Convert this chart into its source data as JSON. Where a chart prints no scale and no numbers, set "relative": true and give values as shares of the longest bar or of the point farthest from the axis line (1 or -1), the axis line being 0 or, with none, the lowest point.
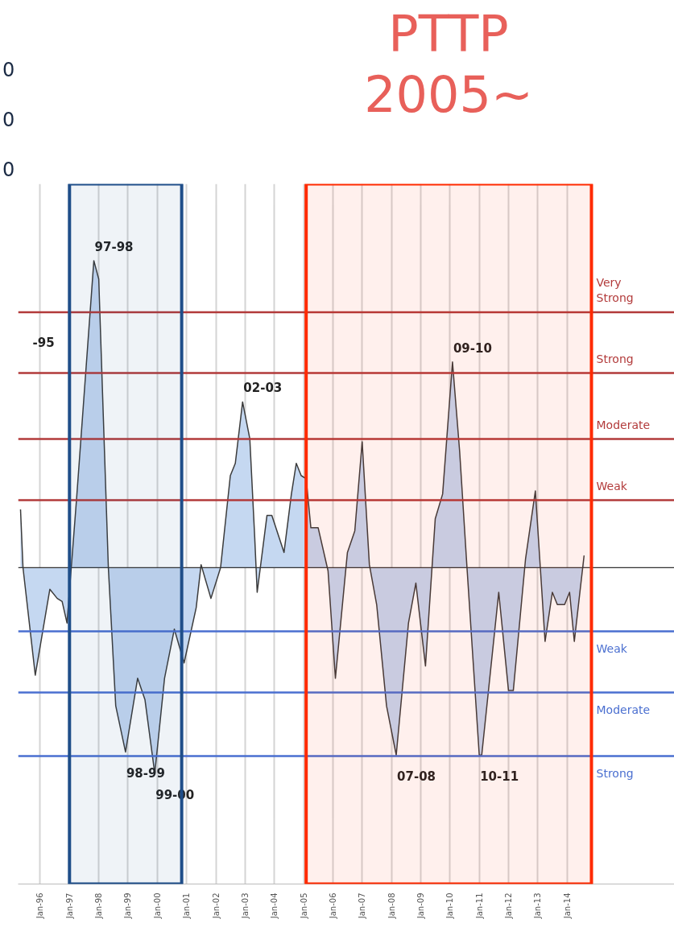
{
  "chart_data": {
    "type": "area",
    "relative": true,
    "x": [
      "1995-05",
      "1995-06",
      "1995-11",
      "1996-05",
      "1996-08",
      "1996-10",
      "1996-12",
      "1997-04",
      "1997-11",
      "1998-01",
      "1998-05",
      "1998-08",
      "1998-12",
      "1999-05",
      "1999-08",
      "1999-12",
      "2000-04",
      "2000-08",
      "2000-12",
      "2001-05",
      "2001-07",
      "2001-11",
      "2002-03",
      "2002-07",
      "2002-09",
      "2002-12",
      "2003-03",
      "2003-05",
      "2003-06",
      "2003-10",
      "2003-12",
      "2004-05",
      "2004-08",
      "2004-10",
      "2004-12",
      "2005-02",
      "2005-04",
      "2005-07",
      "2005-11",
      "2006-02",
      "2006-07",
      "2006-10",
      "2007-01",
      "2007-04",
      "2007-07",
      "2007-11",
      "2008-03",
      "2008-08",
      "2008-11",
      "2009-03",
      "2009-07",
      "2009-10",
      "2010-02",
      "2010-05",
      "2010-08",
      "2011-01",
      "2011-02",
      "2011-09",
      "2012-01",
      "2012-03",
      "2012-08",
      "2012-12",
      "2013-02",
      "2013-04",
      "2013-07",
      "2013-09",
      "2013-12",
      "2014-02",
      "2014-04",
      "2014-08"
    ],
    "series": [
      {
        "color": "#c5d8f1",
        "values": [
          0.19,
          0.0,
          -0.35,
          -0.07,
          -0.1,
          -0.11,
          -0.18,
          0.23,
          1.0,
          0.94,
          0.0,
          -0.45,
          -0.6,
          -0.36,
          -0.43,
          -0.67,
          -0.36,
          -0.2,
          -0.31,
          -0.13,
          0.01,
          -0.1,
          0.0,
          0.3,
          0.34,
          0.54,
          0.42,
          0.1,
          -0.08,
          0.17,
          0.17,
          0.05,
          0.24,
          0.34,
          0.3,
          0.29,
          0.13,
          0.13,
          -0.01,
          -0.36,
          0.05,
          0.12,
          0.41,
          0.01,
          -0.12,
          -0.45,
          -0.61,
          -0.18,
          -0.05,
          -0.32,
          0.16,
          0.24,
          0.67,
          0.38,
          0.0,
          -0.61,
          -0.61,
          -0.08,
          -0.4,
          -0.4,
          0.03,
          0.25,
          0.0,
          -0.24,
          -0.08,
          -0.12,
          -0.12,
          -0.08,
          -0.24,
          0.04
        ]
      }
    ],
    "xlim": [
      "1995-04",
      "2017-09"
    ],
    "xticks": [
      {
        "value": "1996-01",
        "label": "Jan-96"
      },
      {
        "value": "1997-01",
        "label": "Jan-97"
      },
      {
        "value": "1998-01",
        "label": "Jan-98"
      },
      {
        "value": "1999-01",
        "label": "Jan-99"
      },
      {
        "value": "2000-01",
        "label": "Jan-00"
      },
      {
        "value": "2001-01",
        "label": "Jan-01"
      },
      {
        "value": "2002-01",
        "label": "Jan-02"
      },
      {
        "value": "2003-01",
        "label": "Jan-03"
      },
      {
        "value": "2004-01",
        "label": "Jan-04"
      },
      {
        "value": "2005-01",
        "label": "Jan-05"
      },
      {
        "value": "2006-01",
        "label": "Jan-06"
      },
      {
        "value": "2007-01",
        "label": "Jan-07"
      },
      {
        "value": "2008-01",
        "label": "Jan-08"
      },
      {
        "value": "2009-01",
        "label": "Jan-09"
      },
      {
        "value": "2010-01",
        "label": "Jan-10"
      },
      {
        "value": "2011-01",
        "label": "Jan-11"
      },
      {
        "value": "2012-01",
        "label": "Jan-12"
      },
      {
        "value": "2013-01",
        "label": "Jan-13"
      },
      {
        "value": "2014-01",
        "label": "Jan-14"
      }
    ],
    "grid": "x",
    "tick_labels": "x",
    "ref_lines": [
      {
        "axis": "y",
        "value": 0.22,
        "label": "Weak",
        "color": "#b23a3a"
      },
      {
        "axis": "y",
        "value": 0.419,
        "label": "Moderate",
        "color": "#b23a3a"
      },
      {
        "axis": "y",
        "value": 0.634,
        "label": "Strong",
        "color": "#b23a3a"
      },
      {
        "axis": "y",
        "value": 0.832,
        "label": "Very Strong",
        "color": "#b23a3a"
      },
      {
        "axis": "y",
        "value": -0.207,
        "label": "Weak",
        "color": "#4a6fd0"
      },
      {
        "axis": "y",
        "value": -0.406,
        "label": "Moderate",
        "color": "#4a6fd0"
      },
      {
        "axis": "y",
        "value": -0.613,
        "label": "Strong",
        "color": "#4a6fd0"
      }
    ],
    "bands": [
      {
        "axis": "x",
        "from": "1997-01",
        "to": "2000-11",
        "label": null,
        "color": "#1f4e89"
      },
      {
        "axis": "x",
        "from": "2005-02",
        "to": "2014-11",
        "label": "PTTP 2005~",
        "color": "#ff2a00"
      }
    ],
    "annotations": [
      "0",
      "0",
      "0",
      "-95",
      {
        "text": "97-98",
        "x": "1997-11",
        "y": 1.0
      },
      {
        "text": "02-03",
        "x": "2002-12",
        "y": 0.54
      },
      {
        "text": "09-10",
        "x": "2010-02",
        "y": 0.67
      },
      {
        "text": "98-99",
        "x": "1998-12",
        "y": -0.6
      },
      {
        "text": "99-00",
        "x": "1999-12",
        "y": -0.67
      },
      {
        "text": "07-08",
        "x": "2008-03",
        "y": -0.61
      },
      {
        "text": "10-11",
        "x": "2011-01",
        "y": -0.61
      }
    ]
  }
}
